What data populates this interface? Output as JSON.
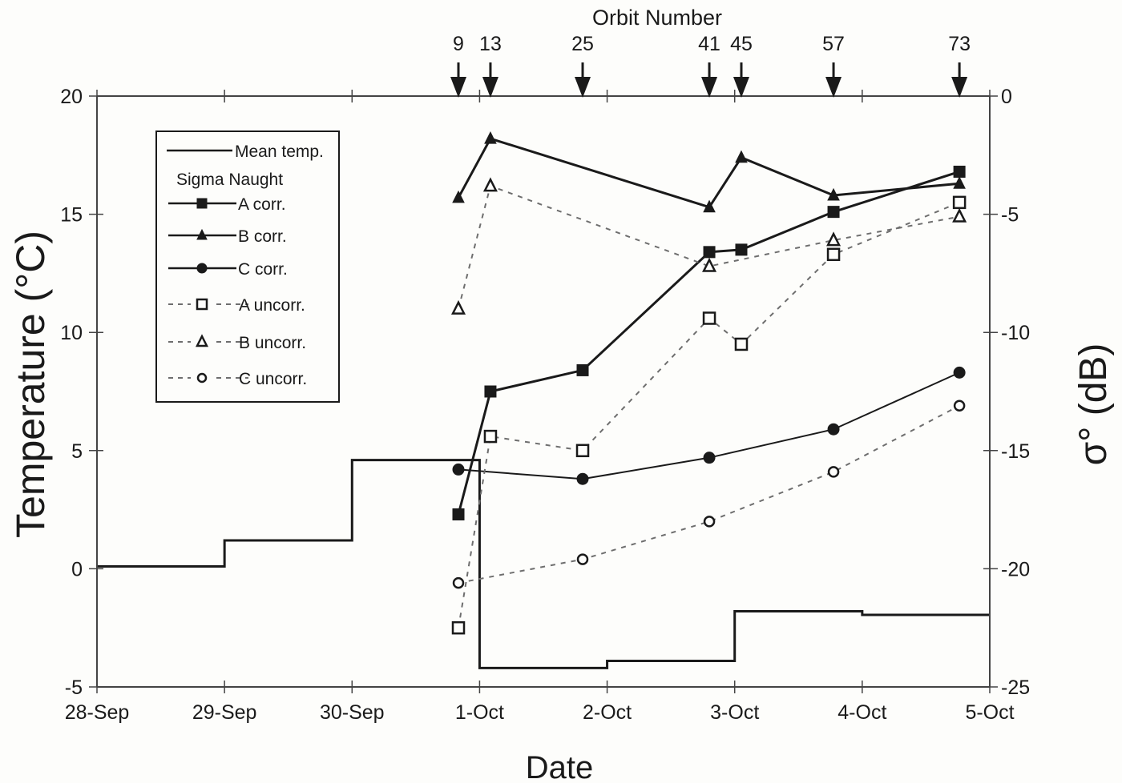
{
  "chart_data": {
    "type": "line",
    "title": "",
    "xlabel": "Date",
    "ylabel": "Temperature (°C)",
    "y2label": "σ° (dB)",
    "top_axis_label": "Orbit Number",
    "x_tick_labels": [
      "28-Sep",
      "29-Sep",
      "30-Sep",
      "1-Oct",
      "2-Oct",
      "3-Oct",
      "4-Oct",
      "5-Oct"
    ],
    "ylim": [
      -5,
      20
    ],
    "y_ticks": [
      -5,
      0,
      5,
      10,
      15,
      20
    ],
    "y2lim": [
      -25,
      0
    ],
    "y2_ticks": [
      -25,
      -20,
      -15,
      -10,
      -5,
      0
    ],
    "grid": false,
    "legend_position": "upper-left inside",
    "orbits": [
      {
        "number": "9",
        "day": 2.834
      },
      {
        "number": "13",
        "day": 3.085
      },
      {
        "number": "25",
        "day": 3.808
      },
      {
        "number": "41",
        "day": 4.801
      },
      {
        "number": "45",
        "day": 5.052
      },
      {
        "number": "57",
        "day": 5.775
      },
      {
        "number": "73",
        "day": 6.762
      }
    ],
    "mean_temperature": {
      "name": "Mean temp.",
      "axis": "left",
      "style": "step",
      "steps": [
        {
          "from": "28-Sep",
          "to": "29-Sep",
          "value": 0.1
        },
        {
          "from": "29-Sep",
          "to": "30-Sep",
          "value": 1.2
        },
        {
          "from": "30-Sep",
          "to": "1-Oct",
          "value": 4.6
        },
        {
          "from": "1-Oct",
          "to": "2-Oct",
          "value": -4.2
        },
        {
          "from": "2-Oct",
          "to": "3-Oct",
          "value": -3.9
        },
        {
          "from": "3-Oct",
          "to": "4-Oct",
          "value": -1.8
        },
        {
          "from": "4-Oct",
          "to": "5-Oct",
          "value": -1.95
        }
      ]
    },
    "legend_subtitle": "Sigma Naught",
    "series": [
      {
        "name": "A corr.",
        "axis": "right",
        "marker": "square-filled",
        "line": "solid",
        "width": 3,
        "points": [
          {
            "orbit": "9",
            "value": -17.7
          },
          {
            "orbit": "13",
            "value": -12.5
          },
          {
            "orbit": "25",
            "value": -11.6
          },
          {
            "orbit": "41",
            "value": -6.6
          },
          {
            "orbit": "45",
            "value": -6.5
          },
          {
            "orbit": "57",
            "value": -4.9
          },
          {
            "orbit": "73",
            "value": -3.2
          }
        ]
      },
      {
        "name": "B corr.",
        "axis": "right",
        "marker": "triangle-filled",
        "line": "solid",
        "width": 3,
        "points": [
          {
            "orbit": "9",
            "value": -4.3
          },
          {
            "orbit": "13",
            "value": -1.8
          },
          {
            "orbit": "41",
            "value": -4.7
          },
          {
            "orbit": "45",
            "value": -2.6
          },
          {
            "orbit": "57",
            "value": -4.2
          },
          {
            "orbit": "73",
            "value": -3.7
          }
        ]
      },
      {
        "name": "C corr.",
        "axis": "right",
        "marker": "circle-filled",
        "line": "solid",
        "width": 2,
        "points": [
          {
            "orbit": "9",
            "value": -15.8
          },
          {
            "orbit": "25",
            "value": -16.2
          },
          {
            "orbit": "41",
            "value": -15.3
          },
          {
            "orbit": "57",
            "value": -14.1
          },
          {
            "orbit": "73",
            "value": -11.7
          }
        ]
      },
      {
        "name": "A uncorr.",
        "axis": "right",
        "marker": "square-open",
        "line": "dashed",
        "width": 2,
        "points": [
          {
            "orbit": "9",
            "value": -22.5
          },
          {
            "orbit": "13",
            "value": -14.4
          },
          {
            "orbit": "25",
            "value": -15.0
          },
          {
            "orbit": "41",
            "value": -9.4
          },
          {
            "orbit": "45",
            "value": -10.5
          },
          {
            "orbit": "57",
            "value": -6.7
          },
          {
            "orbit": "73",
            "value": -4.5
          }
        ]
      },
      {
        "name": "B uncorr.",
        "axis": "right",
        "marker": "triangle-open",
        "line": "dashed",
        "width": 2,
        "points": [
          {
            "orbit": "9",
            "value": -9.0
          },
          {
            "orbit": "13",
            "value": -3.8
          },
          {
            "orbit": "41",
            "value": -7.2
          },
          {
            "orbit": "57",
            "value": -6.1
          },
          {
            "orbit": "73",
            "value": -5.1
          }
        ]
      },
      {
        "name": "C uncorr.",
        "axis": "right",
        "marker": "circle-open",
        "line": "dashed",
        "width": 2,
        "points": [
          {
            "orbit": "9",
            "value": -20.6
          },
          {
            "orbit": "25",
            "value": -19.6
          },
          {
            "orbit": "41",
            "value": -18.0
          },
          {
            "orbit": "57",
            "value": -15.9
          },
          {
            "orbit": "73",
            "value": -13.1
          }
        ]
      }
    ]
  },
  "colors": {
    "ink": "#1a1a1a",
    "dashed": "#6e6e6e",
    "background": "#fdfdfb"
  }
}
